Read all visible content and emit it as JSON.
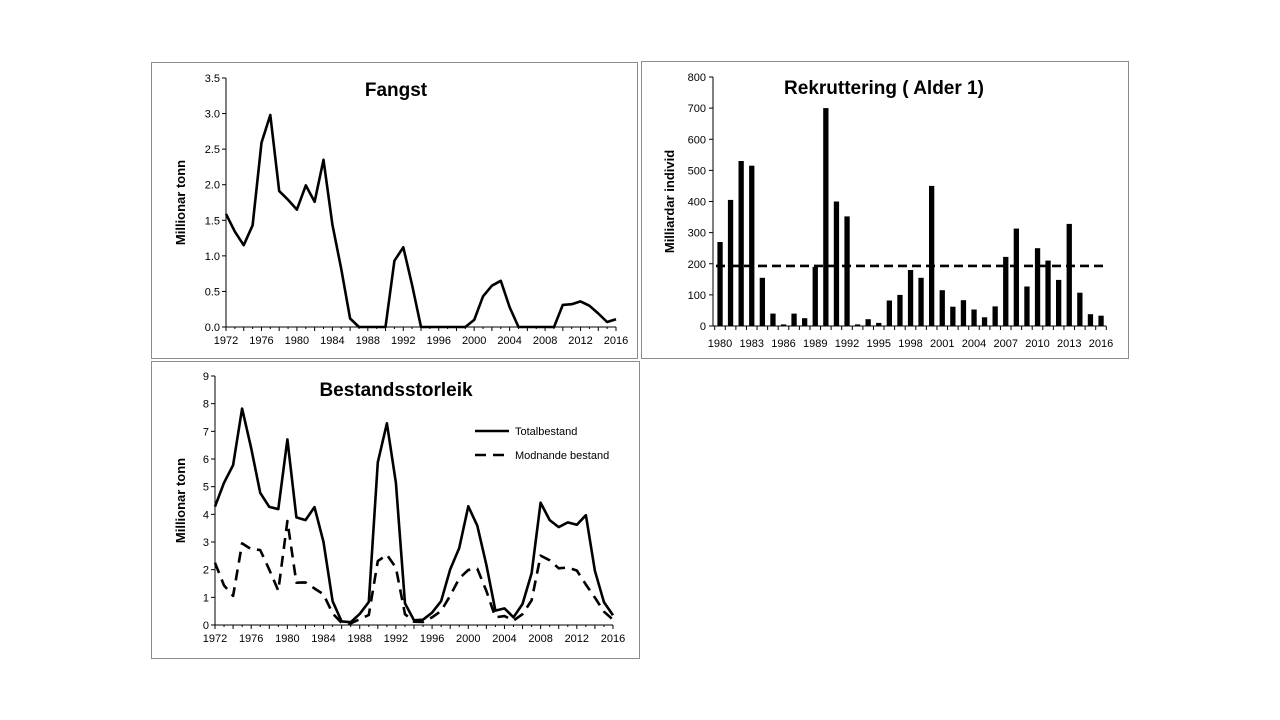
{
  "chart_data": [
    {
      "type": "line",
      "title": "Fangst",
      "ylabel": "Millionar tonn",
      "xlabel": "",
      "xlim": [
        1972,
        2016
      ],
      "ylim": [
        0,
        3.5
      ],
      "xticks": [
        "1972",
        "1976",
        "1980",
        "1984",
        "1988",
        "1992",
        "1996",
        "2000",
        "2004",
        "2008",
        "2012",
        "2016"
      ],
      "yticks": [
        "0.0",
        "0.5",
        "1.0",
        "1.5",
        "2.0",
        "2.5",
        "3.0",
        "3.5"
      ],
      "x": [
        1972,
        1973,
        1974,
        1975,
        1976,
        1977,
        1978,
        1979,
        1980,
        1981,
        1982,
        1983,
        1984,
        1985,
        1986,
        1987,
        1988,
        1989,
        1990,
        1991,
        1992,
        1993,
        1994,
        1995,
        1996,
        1997,
        1998,
        1999,
        2000,
        2001,
        2002,
        2003,
        2004,
        2005,
        2006,
        2007,
        2008,
        2009,
        2010,
        2011,
        2012,
        2013,
        2014,
        2015,
        2016
      ],
      "series": [
        {
          "values": [
            1.59,
            1.34,
            1.15,
            1.43,
            2.59,
            2.98,
            1.91,
            1.79,
            1.65,
            1.99,
            1.76,
            2.35,
            1.44,
            0.82,
            0.12,
            0.0,
            0.0,
            0.0,
            0.0,
            0.93,
            1.12,
            0.59,
            0.0,
            0.0,
            0.0,
            0.0,
            0.0,
            0.0,
            0.1,
            0.43,
            0.58,
            0.65,
            0.28,
            0.0,
            0.0,
            0.0,
            0.0,
            0.0,
            0.31,
            0.32,
            0.36,
            0.3,
            0.19,
            0.07,
            0.11
          ]
        }
      ]
    },
    {
      "type": "bar",
      "title": "Rekruttering ( Alder 1)",
      "ylabel": "Milliardar individ",
      "xlabel": "",
      "ylim": [
        0,
        800
      ],
      "xticks": [
        "1980",
        "1983",
        "1986",
        "1989",
        "1992",
        "1995",
        "1998",
        "2001",
        "2004",
        "2007",
        "2010",
        "2013",
        "2016"
      ],
      "yticks": [
        "0",
        "100",
        "200",
        "300",
        "400",
        "500",
        "600",
        "700",
        "800"
      ],
      "categories": [
        "1980",
        "1981",
        "1982",
        "1983",
        "1984",
        "1985",
        "1986",
        "1987",
        "1988",
        "1989",
        "1990",
        "1991",
        "1992",
        "1993",
        "1994",
        "1995",
        "1996",
        "1997",
        "1998",
        "1999",
        "2000",
        "2001",
        "2002",
        "2003",
        "2004",
        "2005",
        "2006",
        "2007",
        "2008",
        "2009",
        "2010",
        "2011",
        "2012",
        "2013",
        "2014",
        "2015",
        "2016"
      ],
      "values": [
        270,
        405,
        530,
        515,
        155,
        40,
        5,
        40,
        25,
        190,
        700,
        400,
        352,
        5,
        22,
        10,
        82,
        100,
        180,
        155,
        450,
        115,
        62,
        83,
        53,
        28,
        63,
        222,
        313,
        127,
        250,
        210,
        148,
        328,
        107,
        38,
        33
      ],
      "reference_line": 193
    },
    {
      "type": "line",
      "title": "Bestandsstorleik",
      "ylabel": "Millionar tonn",
      "xlabel": "",
      "xlim": [
        1972,
        2016
      ],
      "ylim": [
        0,
        9
      ],
      "legend": "top-right",
      "xticks": [
        "1972",
        "1976",
        "1980",
        "1984",
        "1988",
        "1992",
        "1996",
        "2000",
        "2004",
        "2008",
        "2012",
        "2016"
      ],
      "yticks": [
        "0",
        "1",
        "2",
        "3",
        "4",
        "5",
        "6",
        "7",
        "8",
        "9"
      ],
      "x": [
        1972,
        1973,
        1974,
        1975,
        1976,
        1977,
        1978,
        1979,
        1980,
        1981,
        1982,
        1983,
        1984,
        1985,
        1986,
        1987,
        1988,
        1989,
        1990,
        1991,
        1992,
        1993,
        1994,
        1995,
        1996,
        1997,
        1998,
        1999,
        2000,
        2001,
        2002,
        2003,
        2004,
        2005,
        2006,
        2007,
        2008,
        2009,
        2010,
        2011,
        2012,
        2013,
        2014,
        2015,
        2016
      ],
      "series": [
        {
          "name": "Totalbestand",
          "dash": "solid",
          "values": [
            4.28,
            5.14,
            5.78,
            7.82,
            6.39,
            4.78,
            4.27,
            4.19,
            6.71,
            3.89,
            3.79,
            4.26,
            3.0,
            0.86,
            0.13,
            0.1,
            0.4,
            0.83,
            5.88,
            7.29,
            5.14,
            0.78,
            0.17,
            0.19,
            0.45,
            0.86,
            2.01,
            2.78,
            4.29,
            3.59,
            2.17,
            0.52,
            0.6,
            0.28,
            0.76,
            1.87,
            4.42,
            3.79,
            3.54,
            3.71,
            3.62,
            3.97,
            1.96,
            0.82,
            0.35
          ]
        },
        {
          "name": "Modnande bestand",
          "dash": "dashed",
          "values": [
            2.25,
            1.43,
            1.05,
            2.95,
            2.74,
            2.71,
            2.0,
            1.24,
            3.76,
            1.53,
            1.54,
            1.32,
            1.11,
            0.42,
            0.08,
            0.06,
            0.21,
            0.36,
            2.31,
            2.54,
            2.07,
            0.39,
            0.12,
            0.11,
            0.28,
            0.51,
            1.06,
            1.68,
            1.99,
            2.03,
            1.23,
            0.28,
            0.32,
            0.16,
            0.39,
            0.89,
            2.51,
            2.34,
            2.05,
            2.08,
            1.97,
            1.46,
            0.99,
            0.48,
            0.19
          ]
        }
      ]
    }
  ]
}
